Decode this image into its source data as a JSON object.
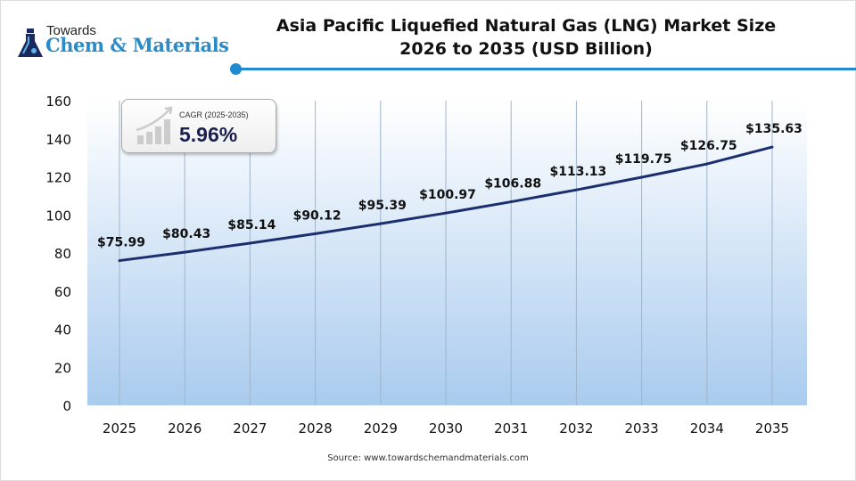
{
  "brand": {
    "line1": "Towards",
    "line2": "Chem & Materials"
  },
  "title_line1": "Asia Pacific Liquefied Natural Gas (LNG) Market Size",
  "title_line2": "2026 to 2035 (USD Billion)",
  "cagr": {
    "label": "CAGR (2025-2035)",
    "value": "5.96%"
  },
  "source": "Source: www.towardschemandmaterials.com",
  "colors": {
    "line": "#1b2f6e",
    "accent": "#1f8ad0",
    "fill_bottom": "#a9cbee"
  },
  "chart_data": {
    "type": "line",
    "categories": [
      "2025",
      "2026",
      "2027",
      "2028",
      "2029",
      "2030",
      "2031",
      "2032",
      "2033",
      "2034",
      "2035"
    ],
    "values": [
      75.99,
      80.43,
      85.14,
      90.12,
      95.39,
      100.97,
      106.88,
      113.13,
      119.75,
      126.75,
      135.63
    ],
    "data_labels": [
      "$75.99",
      "$80.43",
      "$85.14",
      "$90.12",
      "$95.39",
      "$100.97",
      "$106.88",
      "$113.13",
      "$119.75",
      "$126.75",
      "$135.63"
    ],
    "ylim": [
      0,
      160
    ],
    "yticks": [
      "0",
      "20",
      "40",
      "60",
      "80",
      "100",
      "120",
      "140",
      "160"
    ],
    "grid": "vertical",
    "background": "gradient area"
  }
}
